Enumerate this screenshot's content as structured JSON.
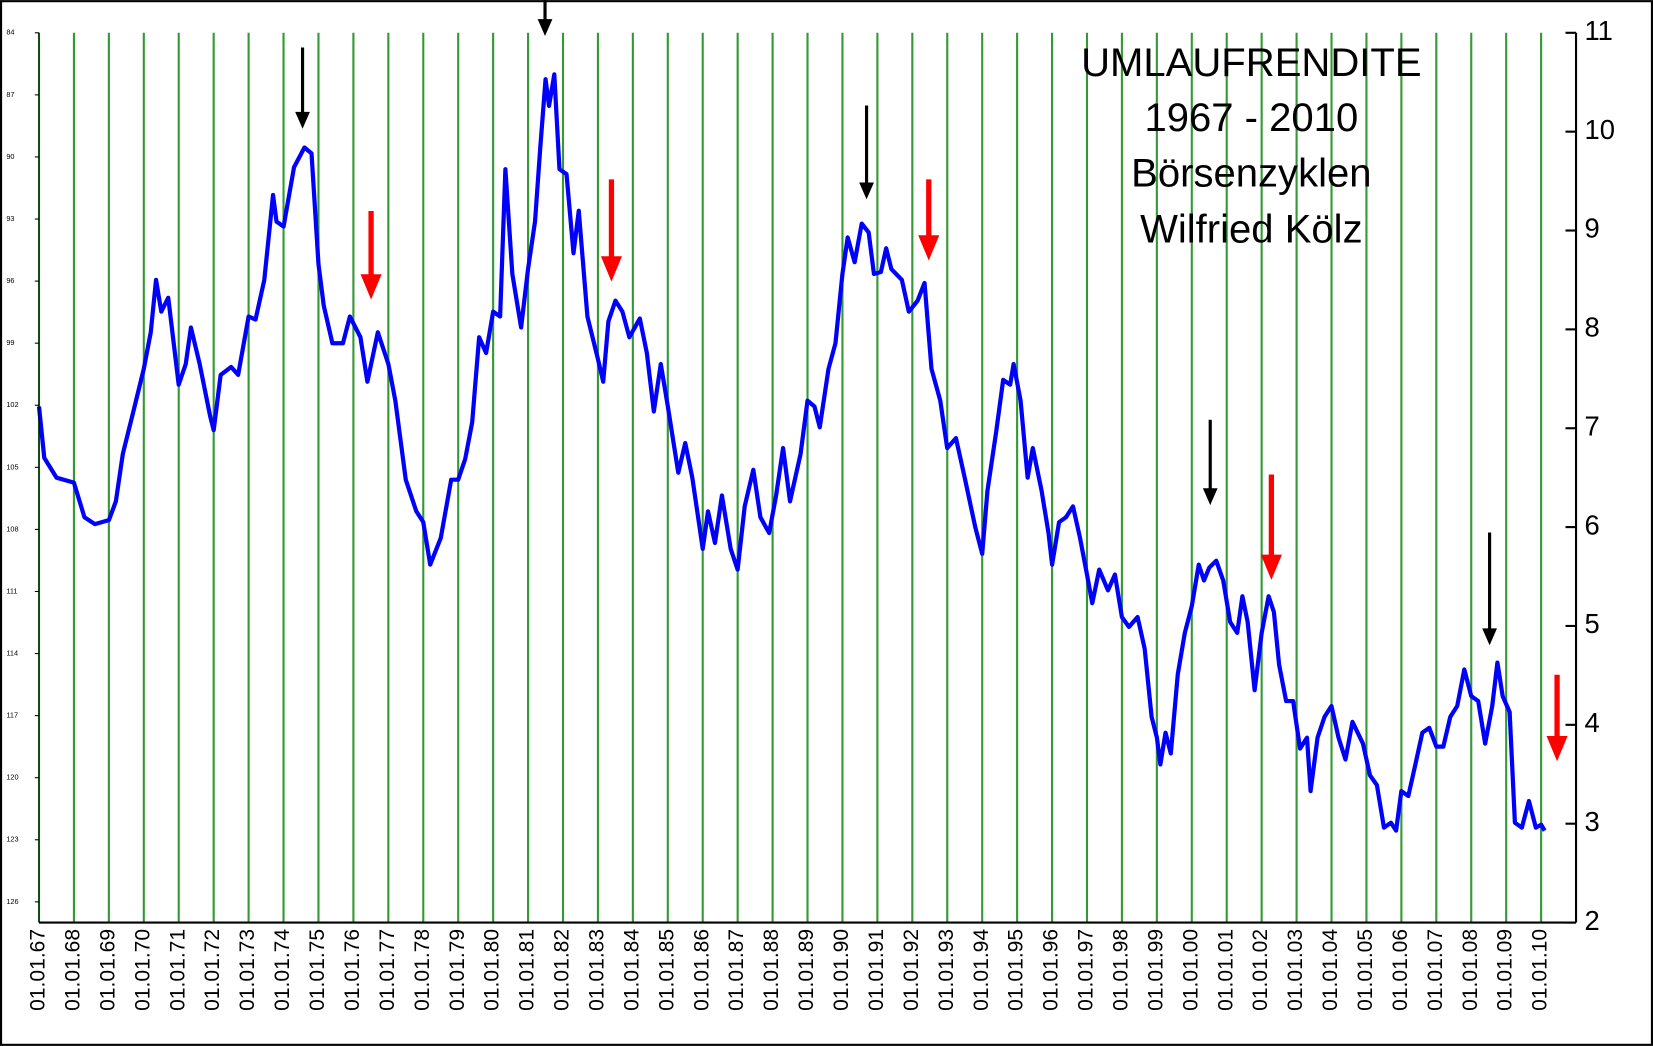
{
  "chart_data": {
    "type": "line",
    "title": [
      "UMLAUFRENDITE",
      "1967 - 2010",
      "Börsenzyklen",
      "Wilfried Kölz"
    ],
    "xlim": [
      1967,
      2011
    ],
    "xticks": [
      {
        "value": 1967,
        "label": "01.01.67"
      },
      {
        "value": 1968,
        "label": "01.01.68"
      },
      {
        "value": 1969,
        "label": "01.01.69"
      },
      {
        "value": 1970,
        "label": "01.01.70"
      },
      {
        "value": 1971,
        "label": "01.01.71"
      },
      {
        "value": 1972,
        "label": "01.01.72"
      },
      {
        "value": 1973,
        "label": "01.01.73"
      },
      {
        "value": 1974,
        "label": "01.01.74"
      },
      {
        "value": 1975,
        "label": "01.01.75"
      },
      {
        "value": 1976,
        "label": "01.01.76"
      },
      {
        "value": 1977,
        "label": "01.01.77"
      },
      {
        "value": 1978,
        "label": "01.01.78"
      },
      {
        "value": 1979,
        "label": "01.01.79"
      },
      {
        "value": 1980,
        "label": "01.01.80"
      },
      {
        "value": 1981,
        "label": "01.01.81"
      },
      {
        "value": 1982,
        "label": "01.01.82"
      },
      {
        "value": 1983,
        "label": "01.01.83"
      },
      {
        "value": 1984,
        "label": "01.01.84"
      },
      {
        "value": 1985,
        "label": "01.01.85"
      },
      {
        "value": 1986,
        "label": "01.01.86"
      },
      {
        "value": 1987,
        "label": "01.01.87"
      },
      {
        "value": 1988,
        "label": "01.01.88"
      },
      {
        "value": 1989,
        "label": "01.01.89"
      },
      {
        "value": 1990,
        "label": "01.01.90"
      },
      {
        "value": 1991,
        "label": "01.01.91"
      },
      {
        "value": 1992,
        "label": "01.01.92"
      },
      {
        "value": 1993,
        "label": "01.01.93"
      },
      {
        "value": 1994,
        "label": "01.01.94"
      },
      {
        "value": 1995,
        "label": "01.01.95"
      },
      {
        "value": 1996,
        "label": "01.01.96"
      },
      {
        "value": 1997,
        "label": "01.01.97"
      },
      {
        "value": 1998,
        "label": "01.01.98"
      },
      {
        "value": 1999,
        "label": "01.01.99"
      },
      {
        "value": 2000,
        "label": "01.01.00"
      },
      {
        "value": 2001,
        "label": "01.01.01"
      },
      {
        "value": 2002,
        "label": "01.01.02"
      },
      {
        "value": 2003,
        "label": "01.01.03"
      },
      {
        "value": 2004,
        "label": "01.01.04"
      },
      {
        "value": 2005,
        "label": "01.01.05"
      },
      {
        "value": 2006,
        "label": "01.01.06"
      },
      {
        "value": 2007,
        "label": "01.01.07"
      },
      {
        "value": 2008,
        "label": "01.01.08"
      },
      {
        "value": 2009,
        "label": "01.01.09"
      },
      {
        "value": 2010,
        "label": "01.01.10"
      }
    ],
    "ylim": [
      2,
      11
    ],
    "yticks": [
      2,
      3,
      4,
      5,
      6,
      7,
      8,
      9,
      10,
      11
    ],
    "y2lim": [
      127,
      84
    ],
    "y2ticks": [
      84,
      87,
      90,
      93,
      96,
      99,
      102,
      105,
      108,
      111,
      114,
      117,
      120,
      123,
      126
    ],
    "grid": true,
    "grid_color": "#339933",
    "series": [
      {
        "color": "#0000ff",
        "x": [
          1967.0,
          1967.15,
          1967.5,
          1968.0,
          1968.3,
          1968.6,
          1969.0,
          1969.2,
          1969.4,
          1969.7,
          1970.0,
          1970.2,
          1970.35,
          1970.5,
          1970.7,
          1971.0,
          1971.2,
          1971.35,
          1971.6,
          1971.9,
          1972.0,
          1972.2,
          1972.5,
          1972.7,
          1973.0,
          1973.2,
          1973.45,
          1973.7,
          1973.8,
          1974.0,
          1974.3,
          1974.6,
          1974.8,
          1975.0,
          1975.15,
          1975.4,
          1975.7,
          1975.9,
          1976.2,
          1976.4,
          1976.7,
          1977.0,
          1977.2,
          1977.5,
          1977.8,
          1978.0,
          1978.2,
          1978.5,
          1978.8,
          1979.0,
          1979.2,
          1979.4,
          1979.6,
          1979.8,
          1980.0,
          1980.2,
          1980.35,
          1980.55,
          1980.8,
          1981.0,
          1981.2,
          1981.35,
          1981.5,
          1981.6,
          1981.75,
          1981.9,
          1982.1,
          1982.3,
          1982.45,
          1982.7,
          1983.0,
          1983.15,
          1983.3,
          1983.5,
          1983.7,
          1983.9,
          1984.2,
          1984.4,
          1984.6,
          1984.8,
          1985.0,
          1985.3,
          1985.5,
          1985.7,
          1986.0,
          1986.15,
          1986.35,
          1986.55,
          1986.8,
          1987.0,
          1987.2,
          1987.45,
          1987.65,
          1987.9,
          1988.1,
          1988.3,
          1988.5,
          1988.8,
          1989.0,
          1989.2,
          1989.35,
          1989.6,
          1989.8,
          1990.0,
          1990.15,
          1990.35,
          1990.55,
          1990.75,
          1990.9,
          1991.1,
          1991.25,
          1991.4,
          1991.7,
          1991.9,
          1992.15,
          1992.35,
          1992.55,
          1992.8,
          1993.0,
          1993.25,
          1993.5,
          1993.8,
          1994.0,
          1994.15,
          1994.4,
          1994.6,
          1994.8,
          1994.9,
          1995.1,
          1995.3,
          1995.45,
          1995.7,
          1995.9,
          1996.0,
          1996.2,
          1996.4,
          1996.6,
          1996.8,
          1997.0,
          1997.15,
          1997.35,
          1997.6,
          1997.8,
          1998.0,
          1998.2,
          1998.45,
          1998.65,
          1998.85,
          1999.0,
          1999.1,
          1999.25,
          1999.4,
          1999.6,
          1999.8,
          2000.0,
          2000.2,
          2000.35,
          2000.5,
          2000.7,
          2000.9,
          2001.1,
          2001.3,
          2001.45,
          2001.6,
          2001.8,
          2002.0,
          2002.2,
          2002.35,
          2002.5,
          2002.7,
          2002.9,
          2003.1,
          2003.3,
          2003.4,
          2003.6,
          2003.8,
          2004.0,
          2004.2,
          2004.4,
          2004.6,
          2004.9,
          2005.1,
          2005.3,
          2005.5,
          2005.7,
          2005.85,
          2006.0,
          2006.2,
          2006.4,
          2006.6,
          2006.8,
          2007.0,
          2007.2,
          2007.4,
          2007.6,
          2007.8,
          2008.0,
          2008.2,
          2008.4,
          2008.6,
          2008.75,
          2008.9,
          2009.1,
          2009.25,
          2009.45,
          2009.65,
          2009.85,
          2010.0,
          2010.1
        ],
        "values": [
          7.22,
          6.7,
          6.5,
          6.45,
          6.1,
          6.03,
          6.07,
          6.26,
          6.74,
          7.17,
          7.6,
          7.97,
          8.5,
          8.18,
          8.32,
          7.44,
          7.65,
          8.02,
          7.65,
          7.12,
          6.98,
          7.54,
          7.62,
          7.54,
          8.13,
          8.1,
          8.5,
          9.36,
          9.09,
          9.04,
          9.64,
          9.84,
          9.78,
          8.66,
          8.24,
          7.86,
          7.86,
          8.13,
          7.92,
          7.47,
          7.97,
          7.65,
          7.28,
          6.48,
          6.16,
          6.05,
          5.62,
          5.89,
          6.48,
          6.48,
          6.69,
          7.06,
          7.92,
          7.76,
          8.18,
          8.13,
          9.62,
          8.56,
          8.02,
          8.61,
          9.09,
          9.84,
          10.53,
          10.26,
          10.58,
          9.62,
          9.57,
          8.77,
          9.2,
          8.13,
          7.7,
          7.47,
          8.08,
          8.29,
          8.18,
          7.92,
          8.11,
          7.76,
          7.17,
          7.65,
          7.22,
          6.55,
          6.85,
          6.5,
          5.78,
          6.16,
          5.84,
          6.32,
          5.78,
          5.57,
          6.21,
          6.58,
          6.1,
          5.94,
          6.32,
          6.8,
          6.26,
          6.74,
          7.28,
          7.22,
          7.01,
          7.6,
          7.86,
          8.56,
          8.93,
          8.68,
          9.07,
          8.98,
          8.56,
          8.58,
          8.82,
          8.61,
          8.5,
          8.18,
          8.29,
          8.47,
          7.6,
          7.28,
          6.8,
          6.9,
          6.5,
          6.0,
          5.73,
          6.37,
          6.96,
          7.49,
          7.44,
          7.65,
          7.28,
          6.5,
          6.8,
          6.37,
          5.94,
          5.62,
          6.05,
          6.1,
          6.21,
          5.89,
          5.52,
          5.23,
          5.57,
          5.36,
          5.52,
          5.09,
          4.99,
          5.09,
          4.77,
          4.08,
          3.87,
          3.6,
          3.92,
          3.71,
          4.51,
          4.93,
          5.2,
          5.62,
          5.46,
          5.59,
          5.66,
          5.46,
          5.04,
          4.93,
          5.3,
          5.04,
          4.35,
          4.93,
          5.3,
          5.14,
          4.61,
          4.24,
          4.24,
          3.76,
          3.87,
          3.33,
          3.87,
          4.08,
          4.19,
          3.87,
          3.65,
          4.03,
          3.81,
          3.49,
          3.39,
          2.96,
          3.01,
          2.93,
          3.33,
          3.28,
          3.6,
          3.92,
          3.97,
          3.78,
          3.78,
          4.08,
          4.19,
          4.56,
          4.29,
          4.24,
          3.81,
          4.19,
          4.63,
          4.29,
          4.13,
          3.01,
          2.96,
          3.23,
          2.96,
          2.99,
          2.93
        ]
      }
    ]
  }
}
